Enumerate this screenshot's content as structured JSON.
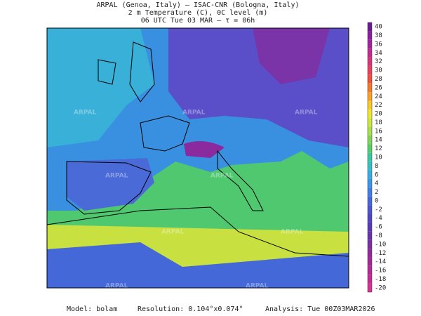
{
  "header": {
    "lines": [
      "ARPAL (Genoa, Italy)  —  ISAC-CNR (Bologna, Italy)",
      "2 m Temperature (C), 0C level (m)",
      "06 UTC Tue 03 MAR  —  τ = 06h"
    ]
  },
  "watermark": "ARPAL",
  "colorbar": {
    "ticks": [
      40,
      38,
      36,
      34,
      32,
      30,
      28,
      26,
      24,
      22,
      20,
      18,
      16,
      14,
      12,
      10,
      8,
      6,
      4,
      2,
      0,
      -2,
      -4,
      -6,
      -8,
      -10,
      -12,
      -14,
      -16,
      -18,
      -20
    ],
    "colors": [
      "#6a1b8c",
      "#8a1f9e",
      "#a0249a",
      "#c02c8f",
      "#d9357c",
      "#e8405d",
      "#f0503c",
      "#f47a2a",
      "#f8a225",
      "#fbc925",
      "#f2e62a",
      "#cde83a",
      "#a6e04a",
      "#7ed75a",
      "#56cf6a",
      "#3cc8a0",
      "#35c0c8",
      "#38aee0",
      "#3b96e6",
      "#3f7fe4",
      "#4468d8",
      "#4a55cc",
      "#5046c0",
      "#5a3ab4",
      "#6a33a8",
      "#7c2fa0",
      "#8f2c9a",
      "#a22a98",
      "#b42a96",
      "#c42c94",
      "#d23494"
    ]
  },
  "footer": {
    "model": "Model: bolam",
    "resolution": "Resolution: 0.104°x0.074°",
    "analysis": "Analysis: Tue 00Z03MAR2026"
  }
}
